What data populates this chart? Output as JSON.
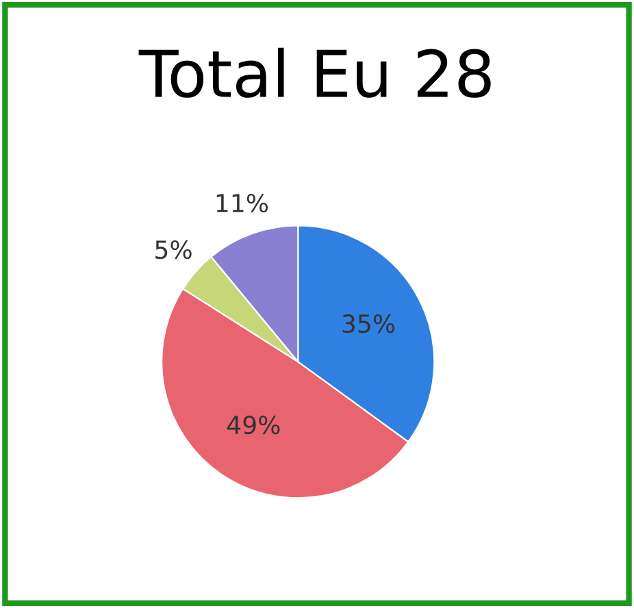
{
  "chart_data": {
    "type": "pie",
    "title": "Total Eu 28",
    "categories": [
      null,
      null,
      null,
      null
    ],
    "values": [
      35,
      49,
      5,
      11
    ],
    "colors": [
      "#2f80e0",
      "#e8646e",
      "#c8d67a",
      "#8a80d2"
    ],
    "value_labels": [
      "35%",
      "49%",
      "5%",
      "11%"
    ],
    "legend": false
  }
}
